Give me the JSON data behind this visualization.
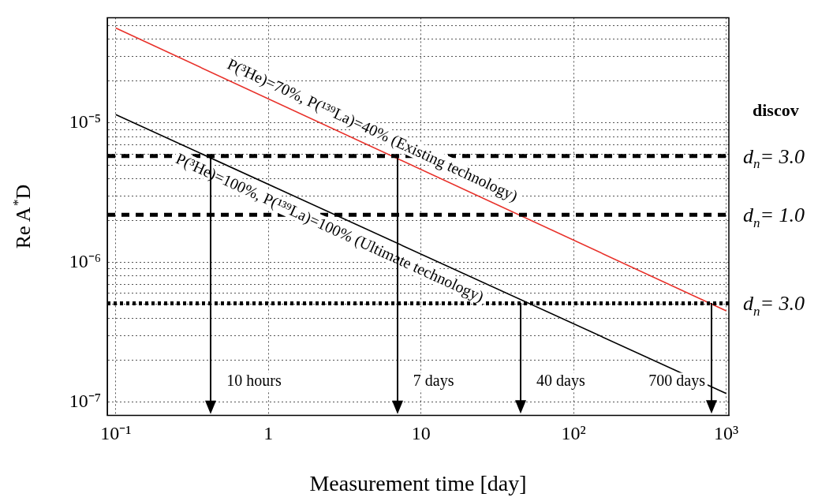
{
  "chart_data": {
    "type": "line",
    "xlabel": "Measurement time [day]",
    "ylabel": "Re A$^{*}$D",
    "x": [
      0.1,
      1000
    ],
    "series": [
      {
        "name": "P(³He)=70%, P(¹³⁹La)=40% (Existing technology)",
        "color": "#e8312a",
        "values": [
          4.8e-05,
          4.5e-07
        ]
      },
      {
        "name": "P(³He)=100%, P(¹³⁹La)=100% (Ultimate technology)",
        "color": "#000000",
        "values": [
          1.15e-05,
          1.15e-07
        ]
      }
    ],
    "log": "xy",
    "xlim": [
      0.088,
      1040
    ],
    "ylim": [
      8e-08,
      5.7e-05
    ],
    "xticks": [
      {
        "value": 0.1,
        "label": "10⁻¹"
      },
      1,
      10,
      {
        "value": 100,
        "label": "10²"
      },
      {
        "value": 1000,
        "label": "10³"
      }
    ],
    "yticks": [
      {
        "value": 1e-07,
        "label": "10⁻⁷"
      },
      {
        "value": 2e-07,
        "label": null
      },
      {
        "value": 3e-07,
        "label": null
      },
      {
        "value": 4e-07,
        "label": null
      },
      {
        "value": 5e-07,
        "label": null
      },
      {
        "value": 6e-07,
        "label": null
      },
      {
        "value": 7e-07,
        "label": null
      },
      {
        "value": 8e-07,
        "label": null
      },
      {
        "value": 9e-07,
        "label": null
      },
      {
        "value": 1e-06,
        "label": "10⁻⁶"
      },
      {
        "value": 2e-06,
        "label": null
      },
      {
        "value": 3e-06,
        "label": null
      },
      {
        "value": 4e-06,
        "label": null
      },
      {
        "value": 5e-06,
        "label": null
      },
      {
        "value": 6e-06,
        "label": null
      },
      {
        "value": 7e-06,
        "label": null
      },
      {
        "value": 8e-06,
        "label": null
      },
      {
        "value": 9e-06,
        "label": null
      },
      {
        "value": 1e-05,
        "label": "10⁻⁵"
      },
      {
        "value": 2e-05,
        "label": null
      },
      {
        "value": 3e-05,
        "label": null
      },
      {
        "value": 4e-05,
        "label": null
      },
      {
        "value": 5e-05,
        "label": null
      }
    ],
    "grid": true,
    "legend": false,
    "marker": "none",
    "line_style": "solid",
    "ref_lines": [
      {
        "axis": "y",
        "value": 5.8e-06,
        "color": "#000000",
        "line_style": "dashed"
      },
      {
        "axis": "y",
        "value": 2.2e-06,
        "color": "#000000",
        "line_style": "dashed"
      },
      {
        "axis": "y",
        "value": 5.1e-07,
        "color": "#000000",
        "line_style": "dotted"
      },
      {
        "axis": "x",
        "value": 0.42,
        "color": "#000000",
        "line_style": "solid"
      },
      {
        "axis": "x",
        "value": 7,
        "color": "#000000",
        "line_style": "solid"
      },
      {
        "axis": "x",
        "value": 45,
        "color": "#000000",
        "line_style": "solid"
      },
      {
        "axis": "x",
        "value": 800,
        "color": "#000000",
        "line_style": "solid"
      }
    ],
    "annotations": [
      "discov",
      "d$_{n}$= 3.0",
      "d$_{n}$= 1.0",
      "d$_{n}$= 3.0",
      "10 hours",
      "7 days",
      "40 days",
      "700 days"
    ]
  }
}
